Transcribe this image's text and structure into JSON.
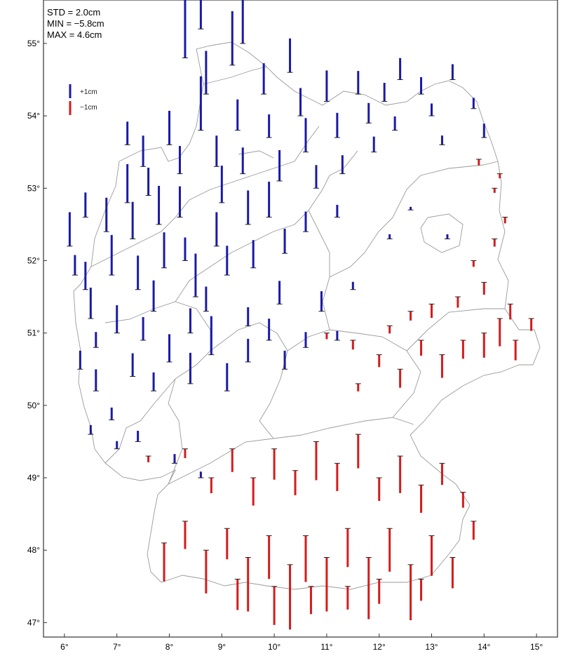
{
  "stats": {
    "std": "STD = 2.0cm",
    "min": "MIN = −5.8cm",
    "max": "MAX = 4.6cm"
  },
  "legend": {
    "positive_label": "+1cm",
    "negative_label": "−1cm",
    "positive_color": "#1a1aa6",
    "negative_color": "#d41c1c"
  },
  "axes": {
    "lat_ticks": [
      "55°",
      "54°",
      "53°",
      "52°",
      "51°",
      "50°",
      "49°",
      "48°",
      "47°"
    ],
    "lon_ticks": [
      "6°",
      "7°",
      "8°",
      "9°",
      "10°",
      "11°",
      "12°",
      "13°",
      "14°",
      "15°"
    ]
  },
  "chart_data": {
    "type": "scatter",
    "title": "",
    "xlabel": "",
    "ylabel": "",
    "xlim": [
      5.6,
      15.4
    ],
    "ylim": [
      46.8,
      55.6
    ],
    "stats": {
      "std_cm": 2.0,
      "min_cm": -5.8,
      "max_cm": 4.6
    },
    "series": [
      {
        "name": "+1cm",
        "points": [
          [
            6.1,
            52.2,
            2.2
          ],
          [
            6.2,
            51.8,
            1.3
          ],
          [
            6.4,
            51.6,
            1.8
          ],
          [
            6.5,
            51.2,
            2.0
          ],
          [
            6.6,
            50.8,
            1.0
          ],
          [
            6.4,
            52.6,
            1.6
          ],
          [
            6.8,
            52.4,
            2.2
          ],
          [
            6.9,
            51.8,
            2.6
          ],
          [
            7.0,
            51.0,
            1.8
          ],
          [
            7.2,
            52.8,
            2.5
          ],
          [
            7.3,
            52.3,
            2.4
          ],
          [
            7.4,
            51.6,
            2.2
          ],
          [
            7.2,
            53.6,
            1.5
          ],
          [
            7.5,
            53.3,
            2.0
          ],
          [
            7.6,
            52.9,
            1.8
          ],
          [
            7.8,
            52.5,
            2.5
          ],
          [
            7.9,
            51.9,
            2.3
          ],
          [
            7.7,
            51.3,
            2.0
          ],
          [
            7.5,
            50.9,
            1.5
          ],
          [
            8.0,
            53.6,
            2.2
          ],
          [
            8.2,
            53.2,
            1.8
          ],
          [
            8.2,
            52.6,
            2.0
          ],
          [
            8.3,
            52.0,
            1.5
          ],
          [
            8.5,
            51.5,
            2.8
          ],
          [
            8.4,
            51.0,
            1.6
          ],
          [
            8.6,
            53.8,
            3.5
          ],
          [
            8.7,
            54.3,
            2.8
          ],
          [
            8.3,
            54.8,
            4.6
          ],
          [
            8.6,
            55.2,
            2.5
          ],
          [
            8.9,
            53.3,
            2.0
          ],
          [
            9.0,
            52.8,
            2.4
          ],
          [
            8.9,
            52.2,
            2.2
          ],
          [
            9.1,
            51.8,
            1.9
          ],
          [
            9.2,
            54.7,
            3.5
          ],
          [
            9.3,
            53.8,
            2.0
          ],
          [
            9.4,
            53.2,
            1.7
          ],
          [
            9.5,
            52.5,
            2.2
          ],
          [
            9.6,
            51.9,
            1.8
          ],
          [
            9.4,
            55.0,
            2.8
          ],
          [
            9.8,
            54.3,
            2.0
          ],
          [
            9.9,
            53.7,
            1.5
          ],
          [
            10.1,
            53.1,
            2.0
          ],
          [
            9.9,
            52.6,
            2.3
          ],
          [
            10.2,
            52.1,
            1.6
          ],
          [
            10.3,
            54.6,
            2.2
          ],
          [
            10.5,
            54.0,
            1.8
          ],
          [
            10.6,
            53.5,
            2.2
          ],
          [
            10.8,
            53.0,
            1.5
          ],
          [
            10.6,
            52.4,
            1.3
          ],
          [
            11.0,
            54.2,
            2.0
          ],
          [
            11.2,
            53.7,
            1.6
          ],
          [
            11.3,
            53.2,
            1.2
          ],
          [
            11.2,
            52.6,
            0.8
          ],
          [
            11.6,
            54.3,
            1.5
          ],
          [
            11.8,
            53.9,
            1.3
          ],
          [
            11.9,
            53.5,
            1.0
          ],
          [
            12.1,
            54.2,
            1.2
          ],
          [
            12.3,
            53.8,
            0.9
          ],
          [
            12.4,
            54.5,
            1.4
          ],
          [
            12.8,
            54.3,
            1.1
          ],
          [
            13.0,
            54.0,
            0.8
          ],
          [
            13.4,
            54.5,
            1.0
          ],
          [
            13.2,
            53.6,
            0.6
          ],
          [
            13.8,
            54.1,
            0.7
          ],
          [
            14.0,
            53.7,
            0.9
          ],
          [
            6.3,
            50.5,
            1.2
          ],
          [
            6.6,
            50.2,
            1.4
          ],
          [
            6.9,
            49.8,
            0.8
          ],
          [
            7.3,
            50.4,
            1.5
          ],
          [
            7.7,
            50.2,
            1.2
          ],
          [
            8.0,
            50.6,
            1.8
          ],
          [
            8.4,
            50.3,
            2.0
          ],
          [
            8.8,
            50.7,
            2.5
          ],
          [
            9.1,
            50.2,
            1.8
          ],
          [
            9.5,
            50.6,
            1.5
          ],
          [
            9.9,
            50.9,
            1.4
          ],
          [
            10.2,
            50.5,
            1.2
          ],
          [
            10.6,
            50.8,
            1.0
          ],
          [
            10.9,
            51.3,
            1.3
          ],
          [
            8.7,
            51.3,
            1.6
          ],
          [
            9.5,
            51.1,
            1.2
          ],
          [
            10.1,
            51.4,
            1.5
          ],
          [
            6.5,
            49.6,
            0.6
          ],
          [
            7.0,
            49.4,
            0.5
          ],
          [
            7.4,
            49.5,
            0.7
          ],
          [
            8.1,
            49.2,
            0.6
          ],
          [
            8.6,
            49.0,
            0.4
          ],
          [
            11.2,
            50.9,
            0.6
          ],
          [
            11.5,
            51.6,
            0.5
          ],
          [
            12.2,
            52.3,
            0.3
          ],
          [
            12.6,
            52.7,
            0.2
          ],
          [
            13.3,
            52.3,
            0.3
          ]
        ]
      },
      {
        "name": "−1cm",
        "points": [
          [
            7.6,
            49.3,
            -0.4
          ],
          [
            8.3,
            49.4,
            -0.6
          ],
          [
            8.8,
            49.0,
            -1.0
          ],
          [
            9.2,
            49.4,
            -1.5
          ],
          [
            9.6,
            49.0,
            -1.8
          ],
          [
            10.0,
            49.4,
            -2.0
          ],
          [
            10.4,
            49.1,
            -1.6
          ],
          [
            10.8,
            49.5,
            -2.5
          ],
          [
            11.2,
            49.2,
            -1.8
          ],
          [
            11.6,
            49.6,
            -2.2
          ],
          [
            12.0,
            49.0,
            -1.5
          ],
          [
            12.4,
            49.3,
            -2.4
          ],
          [
            12.8,
            48.9,
            -1.8
          ],
          [
            13.2,
            49.2,
            -1.4
          ],
          [
            13.6,
            48.8,
            -1.0
          ],
          [
            7.9,
            48.1,
            -2.5
          ],
          [
            8.3,
            48.4,
            -1.8
          ],
          [
            8.7,
            48.0,
            -2.8
          ],
          [
            9.1,
            48.3,
            -2.0
          ],
          [
            9.5,
            47.9,
            -3.5
          ],
          [
            9.9,
            48.2,
            -2.8
          ],
          [
            10.3,
            47.8,
            -4.2
          ],
          [
            10.6,
            48.2,
            -3.0
          ],
          [
            11.0,
            47.9,
            -3.5
          ],
          [
            11.4,
            48.3,
            -2.5
          ],
          [
            11.8,
            47.9,
            -4.0
          ],
          [
            12.2,
            48.3,
            -2.8
          ],
          [
            12.6,
            47.8,
            -3.6
          ],
          [
            13.0,
            48.2,
            -2.6
          ],
          [
            13.4,
            47.9,
            -2.0
          ],
          [
            13.8,
            48.4,
            -1.2
          ],
          [
            9.3,
            47.6,
            -2.0
          ],
          [
            10.0,
            47.5,
            -2.5
          ],
          [
            10.7,
            47.5,
            -1.8
          ],
          [
            11.4,
            47.5,
            -1.5
          ],
          [
            12.0,
            47.6,
            -1.6
          ],
          [
            12.8,
            47.6,
            -1.4
          ],
          [
            11.6,
            50.3,
            -0.5
          ],
          [
            12.0,
            50.7,
            -0.8
          ],
          [
            12.4,
            50.5,
            -1.2
          ],
          [
            12.8,
            50.9,
            -1.0
          ],
          [
            13.2,
            50.7,
            -1.5
          ],
          [
            13.6,
            50.9,
            -1.2
          ],
          [
            14.0,
            51.0,
            -1.6
          ],
          [
            14.3,
            51.2,
            -1.8
          ],
          [
            14.6,
            50.9,
            -1.3
          ],
          [
            14.9,
            51.2,
            -0.8
          ],
          [
            12.6,
            51.3,
            -0.6
          ],
          [
            13.0,
            51.4,
            -0.9
          ],
          [
            13.5,
            51.5,
            -0.7
          ],
          [
            14.0,
            51.7,
            -0.8
          ],
          [
            14.5,
            51.4,
            -1.0
          ],
          [
            11.0,
            51.0,
            -0.4
          ],
          [
            11.5,
            50.9,
            -0.6
          ],
          [
            12.2,
            51.1,
            -0.5
          ],
          [
            13.8,
            52.0,
            -0.4
          ],
          [
            14.2,
            52.3,
            -0.5
          ],
          [
            14.4,
            52.6,
            -0.4
          ],
          [
            14.2,
            53.0,
            -0.3
          ],
          [
            13.9,
            53.4,
            -0.4
          ],
          [
            14.3,
            53.2,
            -0.3
          ]
        ]
      }
    ]
  }
}
